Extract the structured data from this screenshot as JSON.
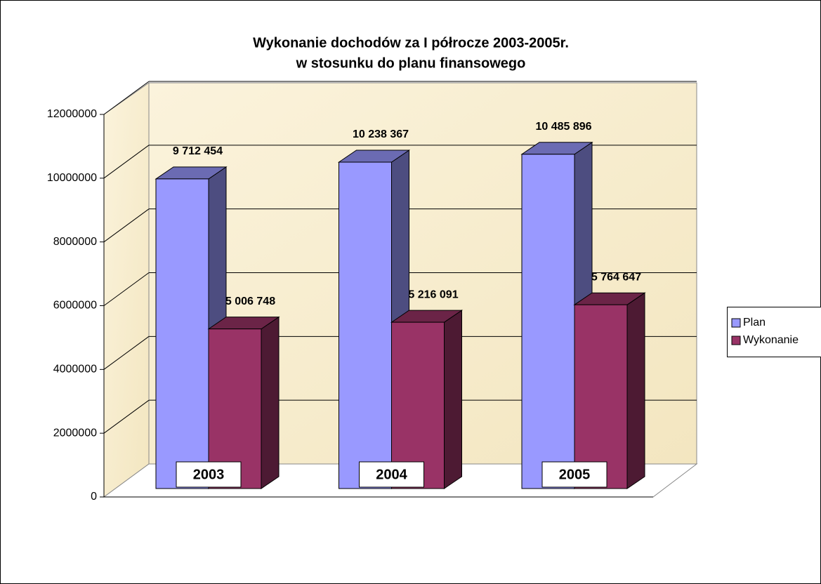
{
  "chart_data": {
    "type": "bar3d",
    "title": [
      "Wykonanie dochodów za I półrocze 2003-2005r.",
      "w stosunku do planu finansowego"
    ],
    "categories": [
      "2003",
      "2004",
      "2005"
    ],
    "series": [
      {
        "name": "Plan",
        "color": "#9999ff",
        "values": [
          9712454,
          10238367,
          10485896
        ],
        "value_labels": [
          "9 712 454",
          "10 238 367",
          "10 485 896"
        ]
      },
      {
        "name": "Wykonanie",
        "color": "#993366",
        "values": [
          5006748,
          5216091,
          5764647
        ],
        "value_labels": [
          "5 006 748",
          "5 216 091",
          "5 764 647"
        ]
      }
    ],
    "ylim": [
      0,
      12000000
    ],
    "yticks": [
      0,
      2000000,
      4000000,
      6000000,
      8000000,
      10000000,
      12000000
    ],
    "grid": true,
    "legend": "right"
  }
}
